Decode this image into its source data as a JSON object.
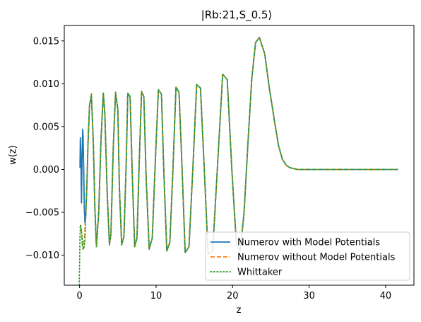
{
  "chart_data": {
    "type": "line",
    "title": "|Rb:21,S_0.5⟩",
    "xlabel": "z",
    "ylabel": "w(z)",
    "xlim": [
      -2.0,
      43.7
    ],
    "ylim": [
      -0.0135,
      0.0168
    ],
    "xticks": [
      0,
      10,
      20,
      30,
      40
    ],
    "xtick_labels": [
      "0",
      "10",
      "20",
      "30",
      "40"
    ],
    "yticks": [
      -0.01,
      -0.005,
      0.0,
      0.005,
      0.01,
      0.015
    ],
    "ytick_labels": [
      "−0.010",
      "−0.005",
      "0.000",
      "0.005",
      "0.010",
      "0.015"
    ],
    "grid": false,
    "legend_position": "lower-right",
    "series": [
      {
        "name": "Numerov with Model Potentials",
        "color": "#1f77b4",
        "style": "solid",
        "x": [
          0.05,
          0.1,
          0.17,
          0.25,
          0.32,
          0.4,
          0.46,
          0.55,
          0.62,
          0.7,
          0.8,
          0.95,
          1.1,
          1.3,
          1.55,
          1.8,
          2.0,
          2.2,
          2.5,
          2.8,
          3.1,
          3.3,
          3.6,
          3.9,
          4.1,
          4.4,
          4.7,
          5.0,
          5.2,
          5.5,
          5.8,
          6.1,
          6.3,
          6.6,
          6.9,
          7.2,
          7.5,
          7.8,
          8.1,
          8.4,
          8.7,
          9.1,
          9.5,
          9.9,
          10.3,
          10.7,
          11.0,
          11.4,
          11.8,
          12.2,
          12.6,
          13.0,
          13.4,
          13.8,
          14.3,
          14.8,
          15.3,
          15.8,
          16.3,
          16.8,
          17.4,
          18.0,
          18.7,
          19.3,
          19.9,
          20.5,
          21.0,
          21.5,
          22.0,
          22.5,
          23.0,
          23.5,
          24.2,
          24.8,
          25.5,
          26.0,
          26.5,
          27.0,
          27.5,
          28.0,
          28.5,
          29.0,
          29.5,
          30.0,
          31.0,
          33.0,
          36.0,
          39.0,
          41.6
        ],
        "y": [
          0.0002,
          0.0037,
          0.0015,
          -0.0039,
          0.0012,
          0.0047,
          0.0038,
          -0.0004,
          -0.0045,
          -0.0062,
          -0.0055,
          -0.002,
          0.003,
          0.0075,
          0.0085,
          0.003,
          -0.0045,
          -0.009,
          -0.005,
          0.0035,
          0.0089,
          0.0065,
          -0.0025,
          -0.0088,
          -0.0075,
          0.0025,
          0.009,
          0.007,
          -0.002,
          -0.0088,
          -0.0078,
          0.001,
          0.0089,
          0.0085,
          -0.001,
          -0.009,
          -0.008,
          0.001,
          0.0091,
          0.0085,
          -0.001,
          -0.0093,
          -0.008,
          0.001,
          0.0093,
          0.0088,
          0.0,
          -0.0095,
          -0.0085,
          0.0,
          0.0096,
          0.009,
          0.0,
          -0.0097,
          -0.009,
          0.0,
          0.0099,
          0.0095,
          0.0,
          -0.0099,
          -0.0095,
          0.0,
          0.0111,
          0.0105,
          0.0,
          -0.0088,
          -0.0095,
          -0.005,
          0.003,
          0.0105,
          0.0148,
          0.0154,
          0.0135,
          0.0095,
          0.0055,
          0.0028,
          0.0012,
          0.0005,
          0.0002,
          0.0001,
          0.0,
          0.0,
          0.0,
          0.0,
          0.0,
          0.0,
          0.0,
          0.0,
          0.0
        ]
      },
      {
        "name": "Numerov without Model Potentials",
        "color": "#ff7f0e",
        "style": "dashed",
        "x": [
          0.05,
          0.15,
          0.25,
          0.35,
          0.45,
          0.55,
          0.65,
          0.8,
          0.95,
          1.1,
          1.3,
          1.55,
          1.8,
          2.0,
          2.2,
          2.5,
          2.8,
          3.1,
          3.3,
          3.6,
          3.9,
          4.1,
          4.4,
          4.7,
          5.0,
          5.2,
          5.5,
          5.8,
          6.1,
          6.3,
          6.6,
          6.9,
          7.2,
          7.5,
          7.8,
          8.1,
          8.4,
          8.7,
          9.1,
          9.5,
          9.9,
          10.3,
          10.7,
          11.0,
          11.4,
          11.8,
          12.2,
          12.6,
          13.0,
          13.4,
          13.8,
          14.3,
          14.8,
          15.3,
          15.8,
          16.3,
          16.8,
          17.4,
          18.0,
          18.7,
          19.3,
          19.9,
          20.5,
          21.0,
          21.5,
          22.0,
          22.5,
          23.0,
          23.5,
          24.2,
          24.8,
          25.5,
          26.0,
          26.5,
          27.0,
          27.5,
          28.0,
          28.5,
          29.0,
          29.5,
          30.0,
          31.0,
          33.0,
          36.0,
          39.0,
          41.6
        ],
        "y": [
          -0.0068,
          -0.0065,
          -0.0075,
          -0.0088,
          -0.0093,
          -0.0088,
          -0.0078,
          -0.0055,
          -0.002,
          0.003,
          0.0075,
          0.0088,
          0.003,
          -0.0045,
          -0.009,
          -0.005,
          0.0035,
          0.0089,
          0.0065,
          -0.0025,
          -0.0088,
          -0.0075,
          0.0025,
          0.009,
          0.007,
          -0.002,
          -0.0088,
          -0.0078,
          0.001,
          0.0089,
          0.0085,
          -0.001,
          -0.009,
          -0.008,
          0.001,
          0.0091,
          0.0085,
          -0.001,
          -0.0093,
          -0.008,
          0.001,
          0.0093,
          0.0088,
          0.0,
          -0.0095,
          -0.0085,
          0.0,
          0.0096,
          0.009,
          0.0,
          -0.0097,
          -0.009,
          0.0,
          0.0099,
          0.0095,
          0.0,
          -0.0099,
          -0.0095,
          0.0,
          0.0111,
          0.0105,
          0.0,
          -0.0088,
          -0.0095,
          -0.005,
          0.003,
          0.0105,
          0.0148,
          0.0154,
          0.0135,
          0.0095,
          0.0055,
          0.0028,
          0.0012,
          0.0005,
          0.0002,
          0.0001,
          0.0,
          0.0,
          0.0,
          0.0,
          0.0,
          0.0,
          0.0,
          0.0,
          0.0
        ]
      },
      {
        "name": "Whittaker",
        "color": "#2ca02c",
        "style": "dotted",
        "x": [
          -0.05,
          0.0,
          0.05,
          0.12,
          0.2,
          0.3,
          0.4,
          0.5,
          0.6,
          0.7,
          0.8,
          0.95,
          1.1,
          1.3,
          1.55,
          1.8,
          2.0,
          2.2,
          2.5,
          2.8,
          3.1,
          3.3,
          3.6,
          3.9,
          4.1,
          4.4,
          4.7,
          5.0,
          5.2,
          5.5,
          5.8,
          6.1,
          6.3,
          6.6,
          6.9,
          7.2,
          7.5,
          7.8,
          8.1,
          8.4,
          8.7,
          9.1,
          9.5,
          9.9,
          10.3,
          10.7,
          11.0,
          11.4,
          11.8,
          12.2,
          12.6,
          13.0,
          13.4,
          13.8,
          14.3,
          14.8,
          15.3,
          15.8,
          16.3,
          16.8,
          17.4,
          18.0,
          18.7,
          19.3,
          19.9,
          20.5,
          21.0,
          21.5,
          22.0,
          22.5,
          23.0,
          23.5,
          24.2,
          24.8,
          25.5,
          26.0,
          26.5,
          27.0,
          27.5,
          28.0,
          28.5,
          29.0,
          29.5,
          30.0,
          31.0,
          33.0,
          36.0,
          39.0,
          41.6
        ],
        "y": [
          -0.0135,
          -0.011,
          -0.0078,
          -0.0065,
          -0.0068,
          -0.0075,
          -0.0088,
          -0.0093,
          -0.009,
          -0.0082,
          -0.0055,
          -0.002,
          0.003,
          0.0075,
          0.0088,
          0.003,
          -0.0045,
          -0.009,
          -0.005,
          0.0035,
          0.0089,
          0.0065,
          -0.0025,
          -0.0088,
          -0.0075,
          0.0025,
          0.009,
          0.007,
          -0.002,
          -0.0088,
          -0.0078,
          0.001,
          0.0089,
          0.0085,
          -0.001,
          -0.009,
          -0.008,
          0.001,
          0.0091,
          0.0085,
          -0.001,
          -0.0093,
          -0.008,
          0.001,
          0.0093,
          0.0088,
          0.0,
          -0.0095,
          -0.0085,
          0.0,
          0.0096,
          0.009,
          0.0,
          -0.0097,
          -0.009,
          0.0,
          0.0099,
          0.0095,
          0.0,
          -0.0099,
          -0.0095,
          0.0,
          0.0111,
          0.0105,
          0.0,
          -0.0088,
          -0.0095,
          -0.005,
          0.003,
          0.0105,
          0.0148,
          0.0154,
          0.0135,
          0.0095,
          0.0055,
          0.0028,
          0.0012,
          0.0005,
          0.0002,
          0.0001,
          0.0,
          0.0,
          0.0,
          0.0,
          0.0,
          0.0,
          0.0,
          0.0,
          0.0
        ]
      }
    ]
  }
}
